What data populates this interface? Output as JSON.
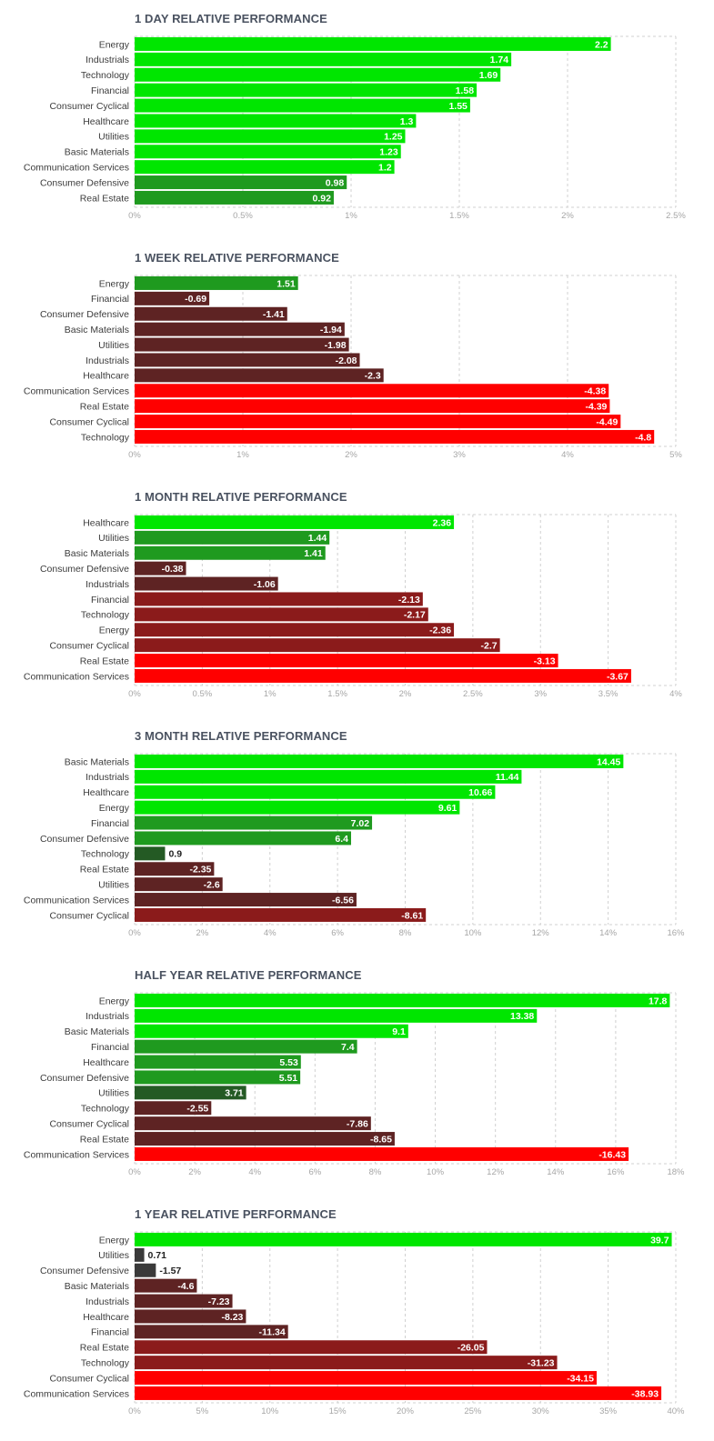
{
  "chart_data": [
    {
      "type": "bar",
      "orientation": "horizontal",
      "title": "1 DAY RELATIVE PERFORMANCE",
      "categories": [
        "Energy",
        "Industrials",
        "Technology",
        "Financial",
        "Consumer Cyclical",
        "Healthcare",
        "Utilities",
        "Basic Materials",
        "Communication Services",
        "Consumer Defensive",
        "Real Estate"
      ],
      "values": [
        2.2,
        1.74,
        1.69,
        1.58,
        1.55,
        1.3,
        1.25,
        1.23,
        1.2,
        0.98,
        0.92
      ],
      "value_labels": [
        "2.2",
        "1.74",
        "1.69",
        "1.58",
        "1.55",
        "1.3",
        "1.25",
        "1.23",
        "1.2",
        "0.98",
        "0.92"
      ],
      "xlim": [
        0,
        2.5
      ],
      "ticks": [
        0,
        0.5,
        1,
        1.5,
        2,
        2.5
      ],
      "tick_labels": [
        "0%",
        "0.5%",
        "1%",
        "1.5%",
        "2%",
        "2.5%"
      ],
      "grid": true,
      "xlabel": "",
      "ylabel": ""
    },
    {
      "type": "bar",
      "orientation": "horizontal",
      "title": "1 WEEK RELATIVE PERFORMANCE",
      "categories": [
        "Energy",
        "Financial",
        "Consumer Defensive",
        "Basic Materials",
        "Utilities",
        "Industrials",
        "Healthcare",
        "Communication Services",
        "Real Estate",
        "Consumer Cyclical",
        "Technology"
      ],
      "values": [
        1.51,
        -0.69,
        -1.41,
        -1.94,
        -1.98,
        -2.08,
        -2.3,
        -4.38,
        -4.39,
        -4.49,
        -4.8
      ],
      "value_labels": [
        "1.51",
        "-0.69",
        "-1.41",
        "-1.94",
        "-1.98",
        "-2.08",
        "-2.3",
        "-4.38",
        "-4.39",
        "-4.49",
        "-4.8"
      ],
      "xlim": [
        0,
        5
      ],
      "ticks": [
        0,
        1,
        2,
        3,
        4,
        5
      ],
      "tick_labels": [
        "0%",
        "1%",
        "2%",
        "3%",
        "4%",
        "5%"
      ],
      "grid": true,
      "xlabel": "",
      "ylabel": ""
    },
    {
      "type": "bar",
      "orientation": "horizontal",
      "title": "1 MONTH RELATIVE PERFORMANCE",
      "categories": [
        "Healthcare",
        "Utilities",
        "Basic Materials",
        "Consumer Defensive",
        "Industrials",
        "Financial",
        "Technology",
        "Energy",
        "Consumer Cyclical",
        "Real Estate",
        "Communication Services"
      ],
      "values": [
        2.36,
        1.44,
        1.41,
        -0.38,
        -1.06,
        -2.13,
        -2.17,
        -2.36,
        -2.7,
        -3.13,
        -3.67
      ],
      "value_labels": [
        "2.36",
        "1.44",
        "1.41",
        "-0.38",
        "-1.06",
        "-2.13",
        "-2.17",
        "-2.36",
        "-2.7",
        "-3.13",
        "-3.67"
      ],
      "xlim": [
        0,
        4
      ],
      "ticks": [
        0,
        0.5,
        1,
        1.5,
        2,
        2.5,
        3,
        3.5,
        4
      ],
      "tick_labels": [
        "0%",
        "0.5%",
        "1%",
        "1.5%",
        "2%",
        "2.5%",
        "3%",
        "3.5%",
        "4%"
      ],
      "grid": true,
      "xlabel": "",
      "ylabel": ""
    },
    {
      "type": "bar",
      "orientation": "horizontal",
      "title": "3 MONTH RELATIVE PERFORMANCE",
      "categories": [
        "Basic Materials",
        "Industrials",
        "Healthcare",
        "Energy",
        "Financial",
        "Consumer Defensive",
        "Technology",
        "Real Estate",
        "Utilities",
        "Communication Services",
        "Consumer Cyclical"
      ],
      "values": [
        14.45,
        11.44,
        10.66,
        9.61,
        7.02,
        6.4,
        0.9,
        -2.35,
        -2.6,
        -6.56,
        -8.61
      ],
      "value_labels": [
        "14.45",
        "11.44",
        "10.66",
        "9.61",
        "7.02",
        "6.4",
        "0.9",
        "-2.35",
        "-2.6",
        "-6.56",
        "-8.61"
      ],
      "xlim": [
        0,
        16
      ],
      "ticks": [
        0,
        2,
        4,
        6,
        8,
        10,
        12,
        14,
        16
      ],
      "tick_labels": [
        "0%",
        "2%",
        "4%",
        "6%",
        "8%",
        "10%",
        "12%",
        "14%",
        "16%"
      ],
      "grid": true,
      "xlabel": "",
      "ylabel": ""
    },
    {
      "type": "bar",
      "orientation": "horizontal",
      "title": "HALF YEAR RELATIVE PERFORMANCE",
      "categories": [
        "Energy",
        "Industrials",
        "Basic Materials",
        "Financial",
        "Healthcare",
        "Consumer Defensive",
        "Utilities",
        "Technology",
        "Consumer Cyclical",
        "Real Estate",
        "Communication Services"
      ],
      "values": [
        17.8,
        13.38,
        9.1,
        7.4,
        5.53,
        5.51,
        3.71,
        -2.55,
        -7.86,
        -8.65,
        -16.43
      ],
      "value_labels": [
        "17.8",
        "13.38",
        "9.1",
        "7.4",
        "5.53",
        "5.51",
        "3.71",
        "-2.55",
        "-7.86",
        "-8.65",
        "-16.43"
      ],
      "xlim": [
        0,
        18
      ],
      "ticks": [
        0,
        2,
        4,
        6,
        8,
        10,
        12,
        14,
        16,
        18
      ],
      "tick_labels": [
        "0%",
        "2%",
        "4%",
        "6%",
        "8%",
        "10%",
        "12%",
        "14%",
        "16%",
        "18%"
      ],
      "grid": true,
      "xlabel": "",
      "ylabel": ""
    },
    {
      "type": "bar",
      "orientation": "horizontal",
      "title": "1 YEAR RELATIVE PERFORMANCE",
      "categories": [
        "Energy",
        "Utilities",
        "Consumer Defensive",
        "Basic Materials",
        "Industrials",
        "Healthcare",
        "Financial",
        "Real Estate",
        "Technology",
        "Consumer Cyclical",
        "Communication Services"
      ],
      "values": [
        39.7,
        0.71,
        -1.57,
        -4.6,
        -7.23,
        -8.23,
        -11.34,
        -26.05,
        -31.23,
        -34.15,
        -38.93
      ],
      "value_labels": [
        "39.7",
        "0.71",
        "-1.57",
        "-4.6",
        "-7.23",
        "-8.23",
        "-11.34",
        "-26.05",
        "-31.23",
        "-34.15",
        "-38.93"
      ],
      "xlim": [
        0,
        40
      ],
      "ticks": [
        0,
        5,
        10,
        15,
        20,
        25,
        30,
        35,
        40
      ],
      "tick_labels": [
        "0%",
        "5%",
        "10%",
        "15%",
        "20%",
        "25%",
        "30%",
        "35%",
        "40%"
      ],
      "grid": true,
      "xlabel": "",
      "ylabel": ""
    }
  ],
  "colors": {
    "title_text": "#4a5260",
    "category_text": "#3c3c3c",
    "tick_text": "#a6a6a6",
    "grid": "#d0d0d0",
    "positive_strong": "#00e600",
    "positive_mid": "#1f9a1f",
    "positive_weak": "#245a24",
    "neutral_dark": "#3a3a3a",
    "negative_weak": "#5e2323",
    "negative_mid": "#8b1b1b",
    "negative_strong": "#ff0000"
  }
}
